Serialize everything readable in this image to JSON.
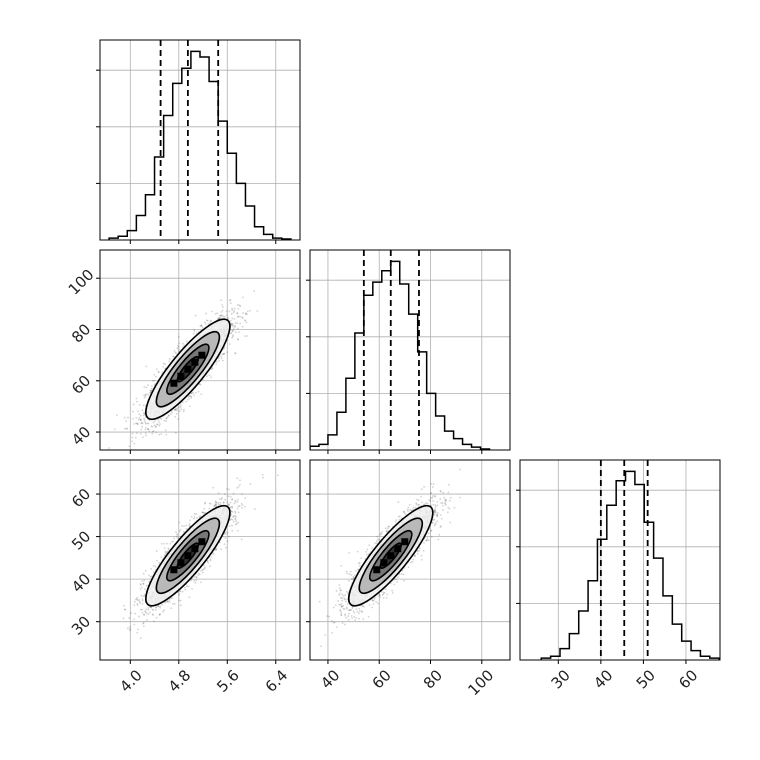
{
  "chart_data": [
    {
      "type": "histogram",
      "panel": "0-0",
      "variable_index": 0,
      "xlim": [
        3.5,
        6.8
      ],
      "x_ticks": [
        "4.0",
        "4.8",
        "5.6",
        "6.4"
      ],
      "x_tick_values": [
        4.0,
        4.8,
        5.6,
        6.4
      ],
      "x_tick_labels_shown": false,
      "y_ticks_values": [
        0.3,
        0.6,
        0.9
      ],
      "y_tick_labels_shown": false,
      "grid": true,
      "bins_left": [
        3.65,
        3.8,
        3.95,
        4.1,
        4.25,
        4.4,
        4.55,
        4.7,
        4.85,
        5.0,
        5.15,
        5.3,
        5.45,
        5.6,
        5.75,
        5.9,
        6.05,
        6.2,
        6.35,
        6.5
      ],
      "bin_width": 0.15,
      "counts": [
        0.01,
        0.02,
        0.05,
        0.13,
        0.24,
        0.44,
        0.66,
        0.83,
        0.91,
        1.0,
        0.97,
        0.84,
        0.63,
        0.46,
        0.3,
        0.18,
        0.07,
        0.03,
        0.01,
        0.005
      ],
      "quantiles": [
        4.5,
        4.95,
        5.45
      ],
      "quantile_style": "dashed"
    },
    {
      "type": "scatter-density",
      "panel": "1-0",
      "x_variable_index": 0,
      "y_variable_index": 1,
      "xlim": [
        3.5,
        6.8
      ],
      "ylim": [
        33,
        111
      ],
      "x_ticks": [
        "4.0",
        "4.8",
        "5.6",
        "6.4"
      ],
      "x_tick_labels_shown": false,
      "y_ticks": [
        "40",
        "60",
        "80",
        "100"
      ],
      "y_tick_values": [
        40,
        60,
        80,
        100
      ],
      "grid": true,
      "center": [
        4.95,
        64.5
      ],
      "contour_levels": [
        "0.5 sigma",
        "1 sigma",
        "1.5 sigma",
        "2 sigma"
      ]
    },
    {
      "type": "histogram",
      "panel": "1-1",
      "variable_index": 1,
      "xlim": [
        33,
        111
      ],
      "x_ticks": [
        "40",
        "60",
        "80",
        "100"
      ],
      "x_tick_labels_shown": false,
      "y_tick_labels_shown": false,
      "grid": true,
      "bins_left": [
        33,
        36.5,
        40,
        43.5,
        47,
        50.5,
        54,
        57.5,
        61,
        64.5,
        68,
        71.5,
        75,
        78.5,
        82,
        85.5,
        89,
        92.5,
        96,
        99.5
      ],
      "bin_width": 3.5,
      "counts": [
        0.02,
        0.03,
        0.08,
        0.2,
        0.38,
        0.62,
        0.82,
        0.89,
        0.95,
        1.0,
        0.88,
        0.72,
        0.52,
        0.3,
        0.18,
        0.1,
        0.06,
        0.03,
        0.015,
        0.005
      ],
      "quantiles": [
        54,
        64.5,
        75.5
      ],
      "quantile_style": "dashed"
    },
    {
      "type": "scatter-density",
      "panel": "2-0",
      "x_variable_index": 0,
      "y_variable_index": 2,
      "xlim": [
        3.5,
        6.8
      ],
      "ylim": [
        21,
        68
      ],
      "x_ticks": [
        "4.0",
        "4.8",
        "5.6",
        "6.4"
      ],
      "x_tick_values": [
        4.0,
        4.8,
        5.6,
        6.4
      ],
      "y_ticks": [
        "30",
        "40",
        "50",
        "60"
      ],
      "y_tick_values": [
        30,
        40,
        50,
        60
      ],
      "grid": true,
      "center": [
        4.95,
        45.5
      ],
      "contour_levels": [
        "0.5 sigma",
        "1 sigma",
        "1.5 sigma",
        "2 sigma"
      ]
    },
    {
      "type": "scatter-density",
      "panel": "2-1",
      "x_variable_index": 1,
      "y_variable_index": 2,
      "xlim": [
        33,
        111
      ],
      "ylim": [
        21,
        68
      ],
      "x_ticks": [
        "40",
        "60",
        "80",
        "100"
      ],
      "x_tick_values": [
        40,
        60,
        80,
        100
      ],
      "y_tick_labels_shown": false,
      "grid": true,
      "center": [
        64.5,
        45.5
      ],
      "contour_levels": [
        "0.5 sigma",
        "1 sigma",
        "1.5 sigma",
        "2 sigma"
      ]
    },
    {
      "type": "histogram",
      "panel": "2-2",
      "variable_index": 2,
      "xlim": [
        21,
        68
      ],
      "x_ticks": [
        "30",
        "40",
        "50",
        "60"
      ],
      "x_tick_values": [
        30,
        40,
        50,
        60
      ],
      "y_tick_labels_shown": false,
      "grid": true,
      "bins_left": [
        26,
        28.2,
        30.4,
        32.6,
        34.8,
        37,
        39.2,
        41.4,
        43.6,
        45.8,
        48,
        50.2,
        52.4,
        54.6,
        56.8,
        59,
        61.2,
        63.4,
        65.6
      ],
      "bin_width": 2.2,
      "counts": [
        0.01,
        0.02,
        0.06,
        0.14,
        0.26,
        0.42,
        0.64,
        0.82,
        0.95,
        1.0,
        0.93,
        0.73,
        0.54,
        0.34,
        0.19,
        0.1,
        0.05,
        0.02,
        0.01
      ],
      "quantiles": [
        40,
        45.5,
        51
      ],
      "quantile_style": "dashed"
    }
  ],
  "style": {
    "line_color": "#000000",
    "grid_color": "#b0b0b0",
    "scatter_color": "#555555",
    "contour_fill_colors": [
      "#f0f0f0",
      "#b4b4b4",
      "#707070",
      "#282828"
    ]
  }
}
